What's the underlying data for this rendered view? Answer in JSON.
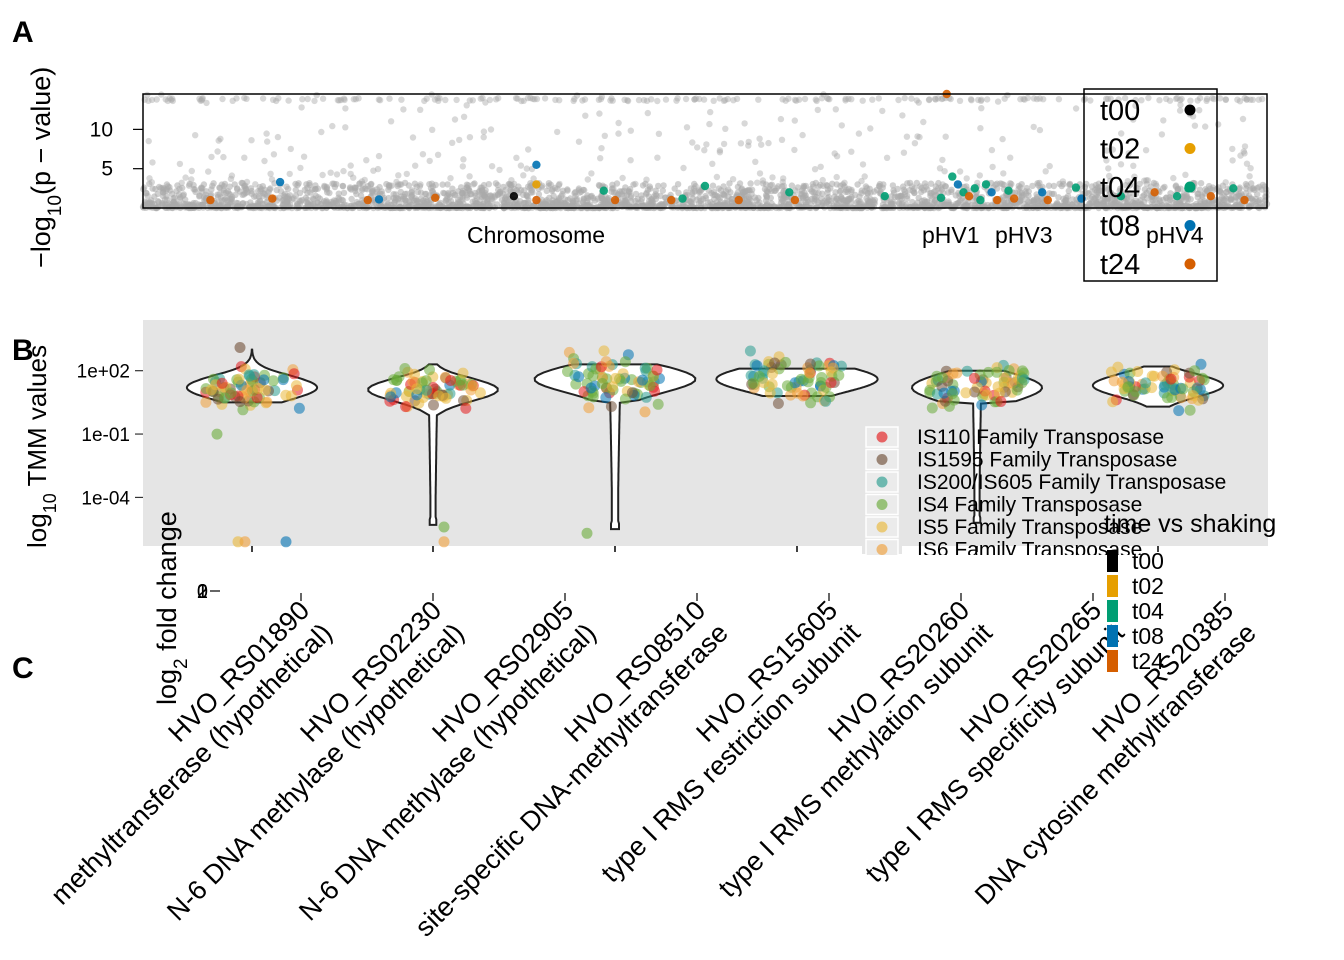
{
  "panel_labels": {
    "a": "A",
    "b": "B",
    "c": "C"
  },
  "colors": {
    "t00": "#000000",
    "t02": "#E69F00",
    "t04": "#009E73",
    "t08": "#0072B2",
    "t24": "#D55E00",
    "background_points": "#A9A9A9",
    "panel_bg": "#E5E5E5",
    "IS110": "#E41A1C",
    "IS1595": "#6F4E37",
    "IS200_IS605": "#2A9D8F",
    "IS4": "#6AAB3B",
    "IS5": "#E9B83A",
    "IS6": "#F0A03A"
  },
  "chart_data": [
    {
      "type": "scatter",
      "name": "manhattan",
      "ylabel_main": "−log",
      "ylabel_sub": "10",
      "ylabel_rest": "(p − value)",
      "yticks": [
        5,
        10
      ],
      "ylim": [
        0,
        14.5
      ],
      "x_category_labels": [
        "Chromosome",
        "pHV1",
        "pHV3",
        "pHV4"
      ],
      "legend": {
        "placement": "top-right",
        "entries": [
          "t00",
          "t02",
          "t04",
          "t08",
          "t24"
        ]
      },
      "highlighted_points": [
        {
          "x": 0.06,
          "y": 1.0,
          "series": "t24"
        },
        {
          "x": 0.115,
          "y": 1.2,
          "series": "t24"
        },
        {
          "x": 0.122,
          "y": 3.3,
          "series": "t08"
        },
        {
          "x": 0.2,
          "y": 1.0,
          "series": "t24"
        },
        {
          "x": 0.21,
          "y": 1.1,
          "series": "t08"
        },
        {
          "x": 0.26,
          "y": 1.3,
          "series": "t24"
        },
        {
          "x": 0.33,
          "y": 1.5,
          "series": "t00"
        },
        {
          "x": 0.35,
          "y": 5.5,
          "series": "t08"
        },
        {
          "x": 0.35,
          "y": 3.0,
          "series": "t02"
        },
        {
          "x": 0.35,
          "y": 1.0,
          "series": "t24"
        },
        {
          "x": 0.41,
          "y": 2.2,
          "series": "t04"
        },
        {
          "x": 0.42,
          "y": 1.0,
          "series": "t24"
        },
        {
          "x": 0.47,
          "y": 1.0,
          "series": "t24"
        },
        {
          "x": 0.48,
          "y": 1.2,
          "series": "t04"
        },
        {
          "x": 0.5,
          "y": 2.8,
          "series": "t04"
        },
        {
          "x": 0.53,
          "y": 1.0,
          "series": "t24"
        },
        {
          "x": 0.575,
          "y": 2.0,
          "series": "t04"
        },
        {
          "x": 0.58,
          "y": 1.0,
          "series": "t24"
        },
        {
          "x": 0.66,
          "y": 1.5,
          "series": "t04"
        },
        {
          "x": 0.71,
          "y": 1.3,
          "series": "t04"
        },
        {
          "x": 0.715,
          "y": 14.5,
          "series": "t24"
        },
        {
          "x": 0.72,
          "y": 4.0,
          "series": "t04"
        },
        {
          "x": 0.725,
          "y": 3.0,
          "series": "t08"
        },
        {
          "x": 0.73,
          "y": 2.0,
          "series": "t04"
        },
        {
          "x": 0.735,
          "y": 1.5,
          "series": "t24"
        },
        {
          "x": 0.74,
          "y": 2.5,
          "series": "t04"
        },
        {
          "x": 0.745,
          "y": 1.0,
          "series": "t04"
        },
        {
          "x": 0.75,
          "y": 3.0,
          "series": "t04"
        },
        {
          "x": 0.755,
          "y": 2.0,
          "series": "t08"
        },
        {
          "x": 0.76,
          "y": 1.0,
          "series": "t24"
        },
        {
          "x": 0.77,
          "y": 2.2,
          "series": "t04"
        },
        {
          "x": 0.775,
          "y": 1.2,
          "series": "t24"
        },
        {
          "x": 0.8,
          "y": 2.0,
          "series": "t08"
        },
        {
          "x": 0.805,
          "y": 1.0,
          "series": "t24"
        },
        {
          "x": 0.83,
          "y": 2.6,
          "series": "t04"
        },
        {
          "x": 0.835,
          "y": 1.2,
          "series": "t08"
        },
        {
          "x": 0.87,
          "y": 1.5,
          "series": "t04"
        },
        {
          "x": 0.9,
          "y": 2.0,
          "series": "t24"
        },
        {
          "x": 0.92,
          "y": 1.5,
          "series": "t04"
        },
        {
          "x": 0.93,
          "y": 2.5,
          "series": "t04"
        },
        {
          "x": 0.95,
          "y": 1.5,
          "series": "t24"
        },
        {
          "x": 0.97,
          "y": 2.5,
          "series": "t04"
        },
        {
          "x": 0.98,
          "y": 1.0,
          "series": "t24"
        }
      ]
    },
    {
      "type": "violin",
      "name": "tmm",
      "ylabel_main": "log",
      "ylabel_sub": "10",
      "ylabel_rest": " TMM values",
      "yticks": [
        "1e+02",
        "1e-01",
        "1e-04"
      ],
      "ytick_exponents": [
        2,
        -1,
        -4
      ],
      "ylim_log10": [
        -6.3,
        4.4
      ],
      "groups": [
        {
          "center_log10": 1.2,
          "median_log10": 1.2,
          "spread": 0.75,
          "min_log10": 0.5,
          "max_log10": 3.0,
          "tail_log10": null
        },
        {
          "center_log10": 1.1,
          "median_log10": 1.1,
          "spread": 0.72,
          "min_log10": 0.0,
          "max_log10": 2.3,
          "tail_log10": -5.3
        },
        {
          "center_log10": 1.6,
          "median_log10": 1.6,
          "spread": 0.85,
          "min_log10": 0.5,
          "max_log10": 2.3,
          "tail_log10": -5.5
        },
        {
          "center_log10": 1.6,
          "median_log10": 1.6,
          "spread": 0.82,
          "min_log10": 0.8,
          "max_log10": 2.1,
          "tail_log10": null
        },
        {
          "center_log10": 1.2,
          "median_log10": 1.2,
          "spread": 0.85,
          "min_log10": 0.5,
          "max_log10": 2.0,
          "tail_log10": -5.2
        },
        {
          "center_log10": 1.3,
          "median_log10": 1.3,
          "spread": 0.72,
          "min_log10": 0.3,
          "max_log10": 2.2,
          "tail_log10": null
        }
      ],
      "legend": {
        "placement": "bottom-right",
        "entries": [
          "IS110 Family Transposase",
          "IS1595 Family Transposase",
          "IS200/IS605 Family Transposase",
          "IS4 Family Transposase",
          "IS5 Family Transposase",
          "IS6 Family Transposase"
        ]
      }
    },
    {
      "type": "bar",
      "name": "fold-change",
      "ylabel_main": "log",
      "ylabel_sub": "2",
      "ylabel_rest": " fold change",
      "yticks": [
        "0",
        "1",
        "2"
      ],
      "categories": [
        "HVO_RS01890",
        "HVO_RS02230",
        "HVO_RS02905",
        "HVO_RS08510",
        "HVO_RS15605",
        "HVO_RS20260",
        "HVO_RS20265",
        "HVO_RS20385"
      ],
      "category_descriptions": [
        "methyltransferase (hypothetical)",
        "N-6 DNA methylase (hypothetical)",
        "N-6 DNA methylase (hypothetical)",
        "site-specific DNA-methyltransferase",
        "type I RMS restriction subunit",
        "type I RMS methylation subunit",
        "type I RMS specificity subunit",
        "DNA cytosine methyltransferase"
      ],
      "legend": {
        "title": "time vs shaking",
        "placement": "right",
        "entries": [
          "t00",
          "t02",
          "t04",
          "t08",
          "t24"
        ]
      }
    }
  ]
}
